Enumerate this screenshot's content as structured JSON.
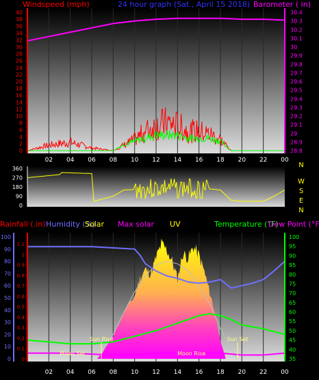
{
  "header": {
    "left_label": "Windspeed (mph)",
    "title": "24 hour graph (Sat., April 15 2018)",
    "right_label": "Barometer ( in)"
  },
  "colors": {
    "wind": "#ff0000",
    "gust_avg": "#00ff00",
    "barometer": "#ff00ff",
    "direction": "#ffff00",
    "humidity": "#7070ff",
    "temperature": "#00ff00",
    "dewpoint": "#ff00ff",
    "solar": "#ffff00",
    "max_solar": "#c0c0c0",
    "rainfall": "#7070ff"
  },
  "chart_data": [
    {
      "type": "line",
      "name": "wind-barometer",
      "title": "24 hour graph (Sat., April 15 2018)",
      "x_ticks": [
        "02",
        "04",
        "06",
        "08",
        "10",
        "12",
        "14",
        "16",
        "18",
        "20",
        "22",
        "00"
      ],
      "y_left": {
        "label": "Windspeed (mph)",
        "ticks": [
          0,
          2,
          4,
          6,
          8,
          10,
          12,
          14,
          16,
          18,
          20,
          22,
          24,
          26,
          28,
          30,
          32,
          34,
          36,
          38,
          40
        ],
        "range": [
          0,
          40
        ]
      },
      "y_right": {
        "label": "Barometer ( in)",
        "ticks": [
          "28.8",
          "28.9",
          "29",
          "29.1",
          "29.2",
          "29.3",
          "29.4",
          "29.5",
          "29.6",
          "29.7",
          "29.8",
          "29.9",
          "30",
          "30.1",
          "30.2",
          "30.3",
          "30.4"
        ],
        "range": [
          28.8,
          30.4
        ]
      },
      "barometer": {
        "x": [
          0,
          2,
          4,
          6,
          8,
          10,
          12,
          14,
          16,
          18,
          20,
          22,
          24
        ],
        "y": [
          30.07,
          30.12,
          30.17,
          30.22,
          30.27,
          30.3,
          30.32,
          30.33,
          30.33,
          30.33,
          30.32,
          30.32,
          30.31
        ]
      },
      "wind_envelope": {
        "x": [
          0,
          2,
          4,
          6,
          8,
          10,
          11,
          12,
          13,
          14,
          15,
          16,
          17,
          18,
          19,
          20,
          24
        ],
        "y": [
          0,
          2,
          3,
          1,
          0,
          4,
          7,
          9,
          10,
          9,
          7,
          7,
          6,
          4,
          0,
          0,
          0
        ]
      },
      "avg_envelope": {
        "x": [
          0,
          6,
          8,
          9,
          10,
          11,
          12,
          13,
          14,
          15,
          16,
          17,
          18,
          19,
          24
        ],
        "y": [
          0,
          0,
          0,
          2,
          3,
          4,
          5,
          5,
          5,
          4,
          4,
          4,
          3,
          0,
          0
        ]
      }
    },
    {
      "type": "line",
      "name": "wind-direction",
      "y_ticks": [
        0,
        90,
        180,
        270,
        360
      ],
      "compass": [
        "N",
        "W",
        "S",
        "E",
        "N"
      ],
      "direction": {
        "x": [
          0,
          1,
          3,
          3.2,
          6,
          6.2,
          8,
          9,
          10,
          11,
          12,
          13,
          14,
          15,
          16,
          17,
          18,
          19,
          20,
          21,
          22,
          23,
          24
        ],
        "y": [
          270,
          280,
          300,
          320,
          310,
          40,
          90,
          150,
          155,
          155,
          160,
          170,
          160,
          165,
          160,
          160,
          150,
          50,
          40,
          40,
          40,
          90,
          150
        ]
      }
    },
    {
      "type": "area",
      "name": "rain-humidity-solar-temperature",
      "labels": {
        "rainfall": "Rainfall (.in)",
        "humidity": "Humidity (%)",
        "solar": "Solar",
        "max_solar": "Max solar",
        "uv": "UV",
        "temperature": "Temperature (°F)",
        "dewpoint": "Dew Point (°F)"
      },
      "rain_ticks": [
        0,
        0.1,
        0.2,
        0.3,
        0.4,
        0.5,
        0.6,
        0.7,
        0.8,
        0.9,
        1,
        1.1
      ],
      "humidity_ticks": [
        0,
        10,
        20,
        30,
        40,
        50,
        60,
        70,
        80,
        90,
        100
      ],
      "temp_ticks": [
        35,
        40,
        45,
        50,
        55,
        60,
        65,
        70,
        75,
        80,
        85,
        90,
        95,
        100
      ],
      "annotations": {
        "sun_rise": "Sun Rise",
        "sun_set": "Sun Set",
        "moon_rise": "Moon Rise",
        "moon_set": "Moon Set"
      },
      "humidity": {
        "x": [
          0,
          6,
          8,
          10,
          10.5,
          11,
          12,
          13,
          14,
          15,
          16,
          17,
          18,
          19,
          20,
          21,
          22,
          23,
          24
        ],
        "y": [
          92,
          92,
          91,
          90,
          85,
          78,
          72,
          68,
          66,
          63,
          62,
          63,
          65,
          58,
          60,
          62,
          65,
          72,
          80
        ]
      },
      "temperature": {
        "x": [
          0,
          2,
          4,
          6,
          8,
          10,
          12,
          14,
          16,
          17,
          18,
          19,
          20,
          22,
          24
        ],
        "y": [
          45,
          44,
          43,
          43,
          44,
          47,
          50,
          54,
          58,
          59,
          58,
          56,
          53,
          51,
          48
        ]
      },
      "dewpoint": {
        "x": [
          0,
          4,
          8,
          10,
          12,
          14,
          16,
          18,
          20,
          22,
          24
        ],
        "y": [
          38,
          38,
          37,
          37,
          38,
          38,
          38,
          38,
          37,
          37,
          38
        ]
      },
      "solar_pct": {
        "x": [
          6.5,
          7,
          8,
          9,
          10,
          10.5,
          11,
          11.5,
          12,
          12.5,
          13,
          13.5,
          14,
          14.5,
          15,
          15.5,
          16,
          16.5,
          17,
          17.5,
          18,
          18.5
        ],
        "y": [
          0,
          5,
          20,
          40,
          55,
          70,
          78,
          74,
          88,
          100,
          95,
          85,
          70,
          92,
          88,
          98,
          90,
          76,
          58,
          40,
          15,
          0
        ]
      },
      "max_solar_pct": {
        "x": [
          6.5,
          8,
          9,
          10,
          11,
          12,
          13,
          14,
          15,
          16,
          17,
          18,
          19.5
        ],
        "y": [
          0,
          20,
          38,
          55,
          68,
          77,
          80,
          78,
          72,
          60,
          45,
          25,
          0
        ]
      }
    }
  ]
}
